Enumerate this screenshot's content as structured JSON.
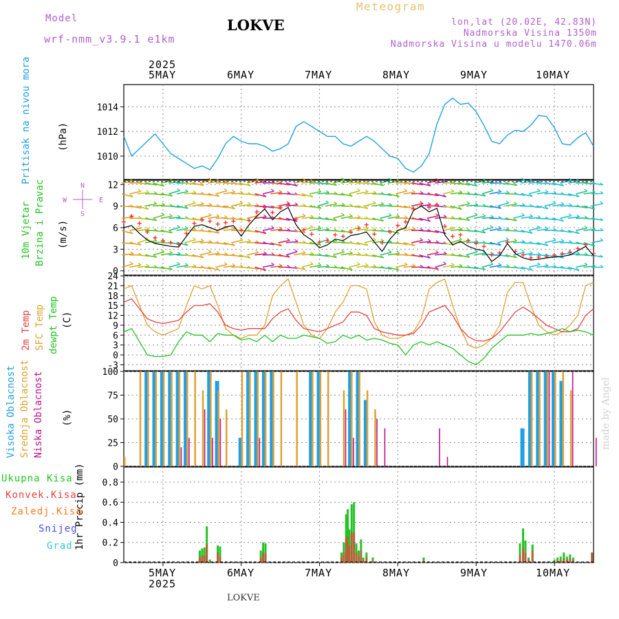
{
  "header": {
    "model_label": "Model",
    "model_name": "wrf-nmm_v3.9.1 e1km",
    "station": "LOKVE",
    "title": "Meteogram",
    "lonlat": "lon,lat (20.02E, 42.83N)",
    "altitude": "Nadmorska Visina 1350m",
    "model_altitude": "Nadmorska Visina u modelu 1470.06m",
    "credit": "made by Angel",
    "footer_station": "LOKVE"
  },
  "colors": {
    "pressure": "#1fa0e6",
    "wind_speed": "#000000",
    "gust": "#ff3030",
    "temp2m": "#e84040",
    "sfc_temp": "#e0a030",
    "dewpoint": "#22c422",
    "cloud_high": "#1fa0e6",
    "cloud_mid": "#e0a030",
    "cloud_low": "#c0108a",
    "precip_total": "#22c422",
    "precip_conv": "#e84040",
    "precip_frozen": "#ff7a20",
    "precip_snow": "#4848e0",
    "precip_graupel": "#30c8d0"
  },
  "time_axis": {
    "year": "2025",
    "days": [
      "5MAY",
      "6MAY",
      "7MAY",
      "8MAY",
      "9MAY",
      "10MAY"
    ]
  },
  "chart_data": [
    {
      "type": "line",
      "panel": "pressure",
      "ylabel": "Pritisak na nivou mora",
      "unit": "(hPa)",
      "yticks": [
        "1010",
        "1012",
        "1014"
      ],
      "ylim": [
        1008.1,
        1015.8
      ],
      "x_days": [
        4.5,
        4.6,
        4.7,
        4.8,
        4.9,
        5.0,
        5.1,
        5.2,
        5.3,
        5.4,
        5.5,
        5.6,
        5.7,
        5.8,
        5.9,
        6.0,
        6.1,
        6.2,
        6.3,
        6.4,
        6.5,
        6.6,
        6.7,
        6.8,
        6.9,
        7.0,
        7.1,
        7.2,
        7.3,
        7.4,
        7.5,
        7.6,
        7.7,
        7.8,
        7.9,
        8.0,
        8.1,
        8.2,
        8.3,
        8.4,
        8.5,
        8.6,
        8.7,
        8.8,
        8.9,
        9.0,
        9.1,
        9.2,
        9.3,
        9.4,
        9.5,
        9.6,
        9.7,
        9.8,
        9.9,
        10.0,
        10.1,
        10.2,
        10.3,
        10.4,
        10.5
      ],
      "values": [
        1011.6,
        1010.0,
        1010.6,
        1011.2,
        1011.8,
        1011.0,
        1010.2,
        1009.8,
        1009.4,
        1009.0,
        1009.2,
        1008.9,
        1009.8,
        1011.0,
        1011.6,
        1011.2,
        1011.0,
        1011.0,
        1010.8,
        1010.4,
        1010.6,
        1011.0,
        1012.4,
        1012.8,
        1012.4,
        1012.0,
        1011.6,
        1011.6,
        1011.0,
        1010.8,
        1011.2,
        1011.6,
        1011.2,
        1010.6,
        1010.0,
        1009.8,
        1009.0,
        1008.7,
        1009.2,
        1010.2,
        1012.6,
        1014.2,
        1014.7,
        1014.2,
        1014.3,
        1013.6,
        1012.5,
        1011.2,
        1011.0,
        1011.7,
        1012.1,
        1012.0,
        1012.5,
        1013.3,
        1013.2,
        1012.3,
        1011.0,
        1010.9,
        1011.5,
        1011.9,
        1010.8
      ]
    },
    {
      "type": "line",
      "panel": "wind",
      "ylabel": "10m Vjetar Brzina i Pravac",
      "unit": "(m/s)",
      "yticks": [
        "0",
        "3",
        "6",
        "9",
        "12"
      ],
      "ylim": [
        -0.6,
        12.6
      ],
      "compass": [
        "N",
        "S",
        "W",
        "E"
      ],
      "x_days": [
        4.5,
        4.6,
        4.7,
        4.8,
        4.9,
        5.0,
        5.1,
        5.2,
        5.3,
        5.4,
        5.5,
        5.6,
        5.7,
        5.8,
        5.9,
        6.0,
        6.1,
        6.2,
        6.3,
        6.4,
        6.5,
        6.6,
        6.7,
        6.8,
        6.9,
        7.0,
        7.1,
        7.2,
        7.3,
        7.4,
        7.5,
        7.6,
        7.7,
        7.8,
        7.9,
        8.0,
        8.1,
        8.2,
        8.3,
        8.4,
        8.5,
        8.6,
        8.7,
        8.8,
        8.9,
        9.0,
        9.1,
        9.2,
        9.3,
        9.4,
        9.5,
        9.6,
        9.7,
        9.8,
        9.9,
        10.0,
        10.1,
        10.2,
        10.3,
        10.4,
        10.5
      ],
      "speed": [
        6.0,
        6.3,
        5.2,
        4.3,
        3.8,
        3.6,
        3.4,
        3.3,
        4.8,
        6.2,
        6.4,
        6.0,
        5.6,
        6.1,
        6.3,
        4.8,
        6.4,
        7.6,
        8.6,
        7.1,
        8.2,
        8.8,
        6.4,
        5.0,
        4.3,
        3.2,
        3.6,
        4.4,
        4.2,
        4.9,
        5.1,
        5.4,
        4.0,
        2.7,
        4.4,
        5.6,
        6.0,
        8.4,
        9.0,
        8.2,
        8.7,
        5.0,
        3.6,
        4.1,
        3.4,
        3.0,
        2.8,
        1.3,
        2.1,
        3.8,
        2.4,
        1.8,
        1.5,
        1.6,
        1.8,
        1.9,
        2.0,
        2.2,
        2.8,
        3.4,
        2.1
      ],
      "gust": [
        6.8,
        7.6,
        6.6,
        5.4,
        4.6,
        4.2,
        3.9,
        3.7,
        5.2,
        6.6,
        7.1,
        6.9,
        6.5,
        6.7,
        6.9,
        5.6,
        7.0,
        8.2,
        8.8,
        8.1,
        8.8,
        9.2,
        7.2,
        5.7,
        5.1,
        4.0,
        4.2,
        5.0,
        4.8,
        5.4,
        5.9,
        6.4,
        5.1,
        3.9,
        5.4,
        6.3,
        6.8,
        8.6,
        9.3,
        8.8,
        9.2,
        6.2,
        4.8,
        5.0,
        4.2,
        3.8,
        3.4,
        2.2,
        2.5,
        4.0,
        2.7,
        2.2,
        1.8,
        1.9,
        2.0,
        2.2,
        2.4,
        2.6,
        3.1,
        3.6,
        2.4
      ],
      "barb_rows": [
        0.5,
        2.2,
        3.9,
        5.6,
        7.3,
        9.0,
        10.7,
        12.2
      ]
    },
    {
      "type": "line",
      "panel": "temperature",
      "series_labels": [
        "2m Temp",
        "SFC Temp",
        "dewpt Temp"
      ],
      "unit": "(C)",
      "yticks": [
        "-3",
        "0",
        "3",
        "6",
        "9",
        "12",
        "15",
        "18",
        "21",
        "24"
      ],
      "ylim": [
        -4.8,
        24.0
      ],
      "x_days": [
        4.5,
        4.6,
        4.7,
        4.8,
        4.9,
        5.0,
        5.1,
        5.2,
        5.3,
        5.4,
        5.5,
        5.6,
        5.7,
        5.8,
        5.9,
        6.0,
        6.1,
        6.2,
        6.3,
        6.4,
        6.5,
        6.6,
        6.7,
        6.8,
        6.9,
        7.0,
        7.1,
        7.2,
        7.3,
        7.4,
        7.5,
        7.6,
        7.7,
        7.8,
        7.9,
        8.0,
        8.1,
        8.2,
        8.3,
        8.4,
        8.5,
        8.6,
        8.7,
        8.8,
        8.9,
        9.0,
        9.1,
        9.2,
        9.3,
        9.4,
        9.5,
        9.6,
        9.7,
        9.8,
        9.9,
        10.0,
        10.1,
        10.2,
        10.3,
        10.4,
        10.5
      ],
      "series": [
        {
          "name": "2m Temp",
          "values": [
            16,
            17,
            14,
            11,
            10,
            9.5,
            10,
            10.5,
            13,
            15,
            15,
            15.5,
            13,
            9,
            8,
            7.5,
            8,
            8,
            8,
            11,
            13,
            14,
            10.5,
            8,
            7.5,
            7,
            8,
            9,
            10,
            13,
            13,
            12,
            8,
            7,
            6.5,
            6,
            6,
            6.5,
            9,
            13,
            14,
            15,
            12,
            8,
            5.5,
            4.3,
            4.2,
            5,
            7,
            10,
            13,
            14.5,
            13,
            11,
            9,
            8,
            7,
            7,
            8,
            12,
            14
          ]
        },
        {
          "name": "SFC Temp",
          "values": [
            20,
            21,
            15,
            9,
            7,
            6,
            7,
            8,
            15,
            21,
            20,
            21,
            15,
            8,
            6,
            5,
            6,
            6,
            9,
            18,
            21,
            23,
            16,
            9,
            6,
            5,
            8,
            13,
            16,
            21,
            21,
            20,
            10,
            6,
            5,
            5,
            6,
            7,
            11,
            20,
            22,
            23,
            15,
            8,
            3,
            2,
            3,
            5,
            9,
            19,
            22,
            22,
            15,
            9,
            7,
            6,
            7,
            9,
            12,
            21,
            22
          ]
        },
        {
          "name": "dewpt Temp",
          "values": [
            7,
            8,
            4,
            0,
            -0.5,
            -0.5,
            0,
            4,
            7,
            6,
            6,
            4,
            6.5,
            6,
            6,
            4.5,
            5,
            4,
            6,
            4,
            6,
            5,
            5,
            6,
            5.5,
            5,
            3.5,
            4,
            6,
            5,
            6,
            4.5,
            5,
            4.5,
            3.5,
            3,
            0,
            3,
            4,
            3,
            4,
            3,
            2,
            0,
            -2,
            -3,
            -1,
            2,
            4,
            6,
            6,
            6,
            6.5,
            6,
            6.5,
            7,
            8,
            7,
            7.5,
            7,
            6
          ]
        }
      ]
    },
    {
      "type": "bar",
      "panel": "clouds",
      "series_labels": [
        "Visoka Oblacnost",
        "Srednja Oblacnost",
        "Niska Oblacnost"
      ],
      "unit": "(%)",
      "yticks": [
        "0",
        "25",
        "50",
        "75",
        "100"
      ],
      "ylim": [
        0,
        100
      ],
      "x_days": [
        4.5,
        4.6,
        4.7,
        4.8,
        4.9,
        5.0,
        5.1,
        5.2,
        5.3,
        5.4,
        5.5,
        5.6,
        5.7,
        5.8,
        5.9,
        6.0,
        6.1,
        6.2,
        6.3,
        6.4,
        6.5,
        6.6,
        6.7,
        6.8,
        6.9,
        7.0,
        7.1,
        7.2,
        7.3,
        7.4,
        7.5,
        7.6,
        7.7,
        7.8,
        7.9,
        8.0,
        8.1,
        8.2,
        8.3,
        8.4,
        8.5,
        8.6,
        8.7,
        8.8,
        8.9,
        9.0,
        9.1,
        9.2,
        9.3,
        9.4,
        9.5,
        9.6,
        9.7,
        9.8,
        9.9,
        10.0,
        10.1,
        10.2,
        10.3,
        10.4,
        10.5
      ],
      "series": [
        {
          "name": "Visoka Oblacnost",
          "values": [
            0,
            0,
            0,
            100,
            100,
            100,
            100,
            100,
            100,
            0,
            0,
            100,
            90,
            0,
            0,
            30,
            100,
            100,
            100,
            100,
            0,
            0,
            0,
            0,
            100,
            100,
            0,
            0,
            0,
            100,
            100,
            70,
            0,
            0,
            0,
            0,
            0,
            0,
            0,
            0,
            0,
            0,
            0,
            0,
            0,
            0,
            0,
            0,
            0,
            0,
            0,
            40,
            100,
            100,
            100,
            100,
            90,
            0,
            0,
            0,
            0
          ]
        },
        {
          "name": "Srednja Oblacnost",
          "values": [
            10,
            0,
            100,
            100,
            100,
            100,
            100,
            100,
            100,
            100,
            80,
            100,
            80,
            60,
            0,
            100,
            100,
            100,
            100,
            100,
            100,
            0,
            100,
            0,
            100,
            100,
            100,
            0,
            80,
            100,
            100,
            80,
            60,
            0,
            0,
            0,
            0,
            0,
            0,
            0,
            0,
            0,
            0,
            0,
            0,
            0,
            0,
            0,
            0,
            0,
            0,
            0,
            100,
            100,
            100,
            100,
            100,
            80,
            0,
            0,
            0
          ]
        },
        {
          "name": "Niska Oblacnost",
          "values": [
            0,
            0,
            0,
            0,
            0,
            0,
            0,
            20,
            30,
            0,
            60,
            30,
            50,
            0,
            0,
            0,
            0,
            30,
            0,
            0,
            0,
            0,
            0,
            0,
            0,
            0,
            0,
            0,
            60,
            30,
            0,
            0,
            50,
            40,
            0,
            0,
            0,
            0,
            0,
            0,
            40,
            10,
            0,
            0,
            0,
            0,
            0,
            0,
            0,
            0,
            0,
            0,
            0,
            0,
            100,
            0,
            0,
            100,
            0,
            0,
            30
          ]
        }
      ]
    },
    {
      "type": "bar",
      "panel": "precipitation",
      "series_labels": [
        "Ukupna Kisa",
        "Konvek.Kisa",
        "Zaledj.Kisa",
        "Snijeg",
        "Grad"
      ],
      "ylabel": "1hr Precip (mm)",
      "yticks": [
        "0",
        "0.2",
        "0.4",
        "0.6",
        "0.8"
      ],
      "ylim": [
        0,
        0.95
      ],
      "x_days": [
        5.47,
        5.5,
        5.53,
        5.56,
        5.6,
        5.7,
        5.73,
        6.25,
        6.28,
        6.31,
        7.28,
        7.31,
        7.34,
        7.36,
        7.38,
        7.41,
        7.44,
        7.47,
        7.5,
        7.53,
        7.56,
        7.6,
        7.68,
        8.33,
        9.56,
        9.6,
        9.63,
        9.67,
        9.72,
        10.0,
        10.04,
        10.08,
        10.12,
        10.16,
        10.2,
        10.24,
        10.48
      ],
      "total": [
        0.12,
        0.14,
        0.15,
        0.36,
        0.03,
        0.17,
        0.16,
        0.12,
        0.2,
        0.19,
        0.1,
        0.2,
        0.48,
        0.53,
        0.33,
        0.58,
        0.6,
        0.19,
        0.12,
        0.23,
        0.05,
        0.1,
        0.05,
        0.05,
        0.19,
        0.34,
        0.22,
        0.05,
        0.18,
        0.03,
        0.05,
        0.06,
        0.1,
        0.06,
        0.08,
        0.05,
        0.1
      ],
      "convective": [
        0.05,
        0.07,
        0.07,
        0.18,
        0.01,
        0.1,
        0.06,
        0.05,
        0.1,
        0.09,
        0.05,
        0.1,
        0.25,
        0.26,
        0.17,
        0.3,
        0.3,
        0.1,
        0.06,
        0.12,
        0.02,
        0.05,
        0.02,
        0.02,
        0.08,
        0.15,
        0.1,
        0.03,
        0.12,
        0.01,
        0.02,
        0.02,
        0.04,
        0.03,
        0.04,
        0.02,
        0.1
      ]
    }
  ]
}
